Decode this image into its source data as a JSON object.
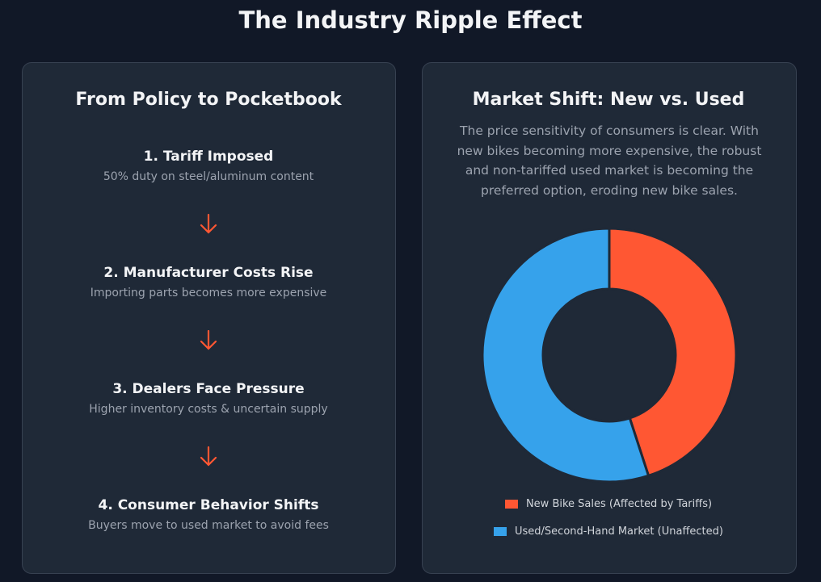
{
  "header": {
    "title": "The Industry Ripple Effect"
  },
  "flow": {
    "title": "From Policy to Pocketbook",
    "steps": [
      {
        "title": "1. Tariff Imposed",
        "description": "50% duty on steel/aluminum content"
      },
      {
        "title": "2. Manufacturer Costs Rise",
        "description": "Importing parts becomes more expensive"
      },
      {
        "title": "3. Dealers Face Pressure",
        "description": "Higher inventory costs & uncertain supply"
      },
      {
        "title": "4. Consumer Behavior Shifts",
        "description": "Buyers move to used market to avoid fees"
      }
    ]
  },
  "chart_data": {
    "type": "donut",
    "title": "Market Shift: New vs. Used",
    "subtitle": "The price sensitivity of consumers is clear. With new bikes becoming more expensive, the robust and non-tariffed used market is becoming the preferred option, eroding new bike sales.",
    "categories": [
      "New Bike Sales (Affected by Tariffs)",
      "Used/Second-Hand Market (Unaffected)"
    ],
    "values": [
      45,
      55
    ],
    "colors": [
      "#ff5733",
      "#36a2eb"
    ]
  }
}
